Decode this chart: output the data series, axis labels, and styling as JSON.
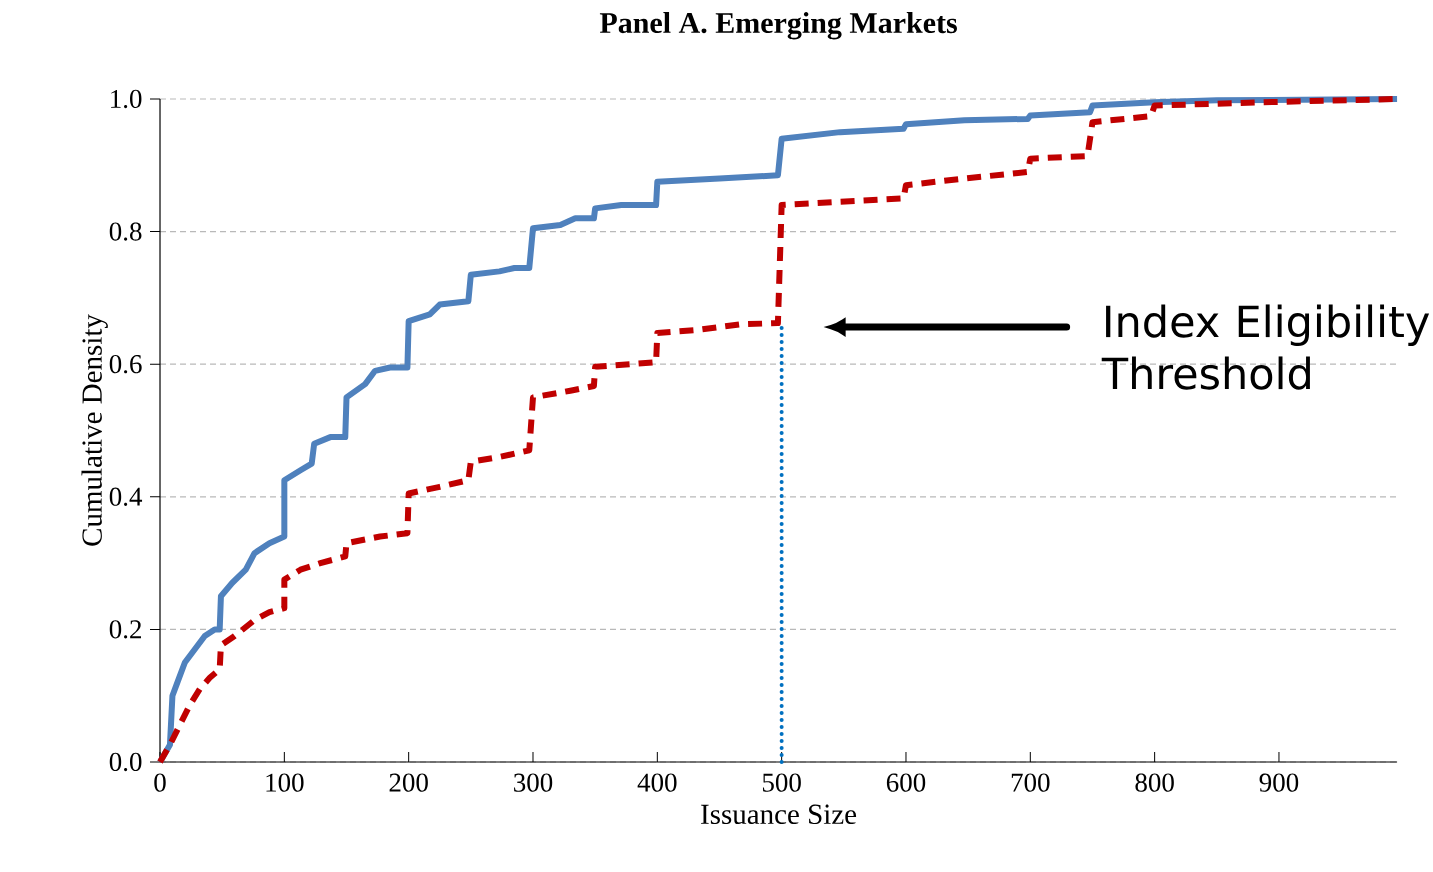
{
  "chart_data": {
    "type": "line",
    "title": "Panel A. Emerging Markets",
    "xlabel": "Issuance Size",
    "ylabel": "Cumulative Density",
    "xlim": [
      0,
      995
    ],
    "ylim": [
      0,
      1.0
    ],
    "xticks": [
      0,
      100,
      200,
      300,
      400,
      500,
      600,
      700,
      800,
      900
    ],
    "yticks": [
      {
        "value": 0,
        "label": "0.0"
      },
      {
        "value": 0.2,
        "label": "0.2"
      },
      {
        "value": 0.4,
        "label": "0.4"
      },
      {
        "value": 0.6,
        "label": "0.6"
      },
      {
        "value": 0.8,
        "label": "0.8"
      },
      {
        "value": 1.0,
        "label": "1.0"
      }
    ],
    "grid": "y",
    "marker": "none",
    "series": [
      {
        "color": "#4f81bd",
        "line_style": "solid",
        "x": [
          0,
          8,
          10,
          14,
          20,
          28,
          36,
          44,
          48,
          49,
          58,
          69,
          76,
          88,
          100,
          100,
          113,
          122,
          124,
          137,
          149,
          150,
          165,
          173,
          185,
          199,
          200,
          217,
          225,
          248,
          250,
          273,
          285,
          297,
          300,
          322,
          334,
          349,
          350,
          371,
          399,
          400,
          450,
          497,
          500,
          547,
          598,
          600,
          647,
          698,
          700,
          748,
          750,
          800,
          850,
          995
        ],
        "values": [
          0,
          0.026,
          0.1,
          0.12,
          0.15,
          0.17,
          0.19,
          0.2,
          0.2,
          0.25,
          0.27,
          0.29,
          0.315,
          0.33,
          0.34,
          0.425,
          0.44,
          0.45,
          0.48,
          0.49,
          0.49,
          0.55,
          0.57,
          0.59,
          0.595,
          0.595,
          0.665,
          0.675,
          0.69,
          0.695,
          0.735,
          0.74,
          0.745,
          0.745,
          0.805,
          0.81,
          0.82,
          0.82,
          0.835,
          0.84,
          0.84,
          0.875,
          0.88,
          0.885,
          0.94,
          0.95,
          0.955,
          0.962,
          0.968,
          0.97,
          0.975,
          0.98,
          0.99,
          0.995,
          0.998,
          1.0
        ]
      },
      {
        "color": "#c00000",
        "line_style": "dashed",
        "x": [
          0,
          8,
          16,
          24,
          32,
          40,
          48,
          49,
          60,
          76,
          88,
          100,
          100,
          113,
          129,
          149,
          150,
          177,
          199,
          200,
          225,
          248,
          250,
          273,
          297,
          300,
          330,
          349,
          350,
          399,
          400,
          434,
          466,
          497,
          500,
          547,
          598,
          600,
          647,
          698,
          700,
          746,
          750,
          797,
          800,
          885,
          995
        ],
        "values": [
          0,
          0.026,
          0.056,
          0.086,
          0.11,
          0.127,
          0.14,
          0.176,
          0.19,
          0.214,
          0.226,
          0.232,
          0.275,
          0.29,
          0.3,
          0.31,
          0.33,
          0.34,
          0.345,
          0.405,
          0.415,
          0.425,
          0.453,
          0.46,
          0.47,
          0.55,
          0.56,
          0.567,
          0.596,
          0.603,
          0.647,
          0.652,
          0.66,
          0.662,
          0.84,
          0.845,
          0.85,
          0.87,
          0.88,
          0.89,
          0.91,
          0.914,
          0.965,
          0.974,
          0.99,
          0.995,
          1.0
        ]
      }
    ],
    "ref_lines": [
      {
        "axis": "x",
        "value": 500,
        "color": "#0070c0",
        "line_style": "dotted"
      }
    ],
    "annotations": [
      "Index Eligibility Threshold"
    ]
  }
}
